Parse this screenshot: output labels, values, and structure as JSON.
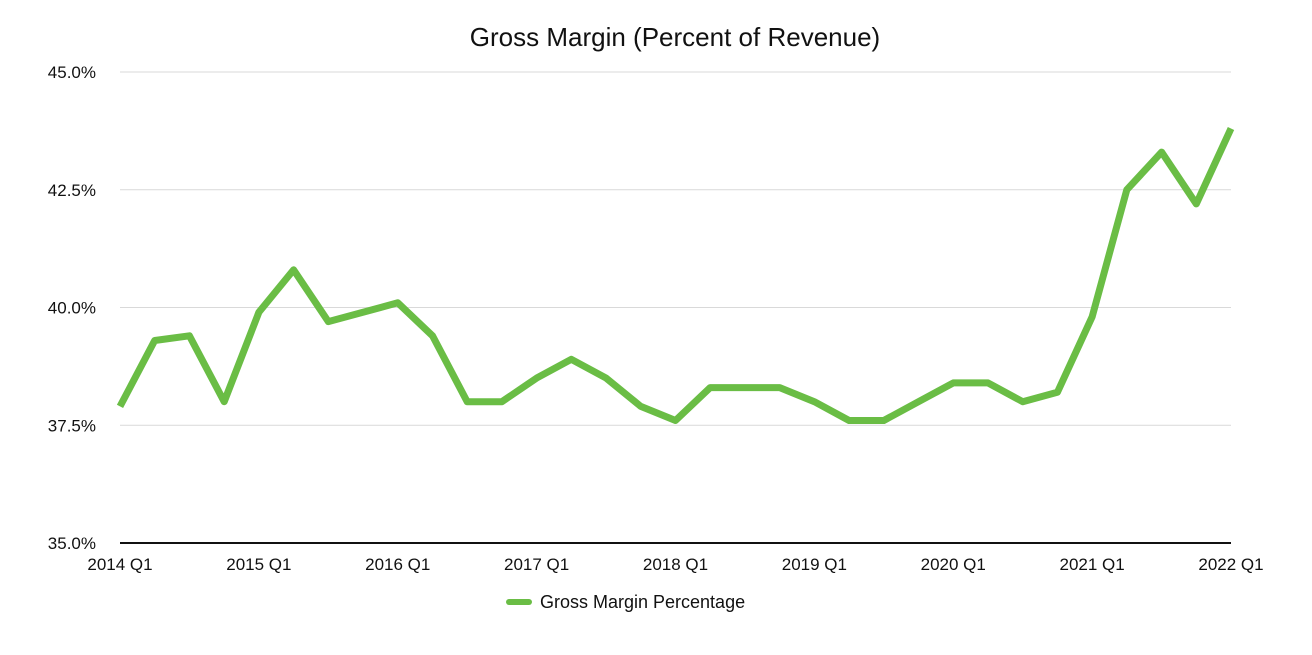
{
  "chart_data": {
    "type": "line",
    "title": "Gross Margin (Percent of Revenue)",
    "xlabel": "",
    "ylabel": "",
    "ylim": [
      35.0,
      45.0
    ],
    "yticks": [
      35.0,
      37.5,
      40.0,
      42.5,
      45.0
    ],
    "ytick_labels": [
      "35.0%",
      "37.5%",
      "40.0%",
      "42.5%",
      "45.0%"
    ],
    "x": [
      "2014 Q1",
      "2014 Q2",
      "2014 Q3",
      "2014 Q4",
      "2015 Q1",
      "2015 Q2",
      "2015 Q3",
      "2015 Q4",
      "2016 Q1",
      "2016 Q2",
      "2016 Q3",
      "2016 Q4",
      "2017 Q1",
      "2017 Q2",
      "2017 Q3",
      "2017 Q4",
      "2018 Q1",
      "2018 Q2",
      "2018 Q3",
      "2018 Q4",
      "2019 Q1",
      "2019 Q2",
      "2019 Q3",
      "2019 Q4",
      "2020 Q1",
      "2020 Q2",
      "2020 Q3",
      "2020 Q4",
      "2021 Q1",
      "2021 Q2",
      "2021 Q3",
      "2021 Q4",
      "2022 Q1"
    ],
    "xtick_labels": [
      "2014 Q1",
      "2015 Q1",
      "2016 Q1",
      "2017 Q1",
      "2018 Q1",
      "2019 Q1",
      "2020 Q1",
      "2021 Q1",
      "2022 Q1"
    ],
    "grid": true,
    "legend_position": "bottom-center",
    "series": [
      {
        "name": "Gross Margin Percentage",
        "color": "#6abd45",
        "values": [
          37.9,
          39.3,
          39.4,
          38.0,
          39.9,
          40.8,
          39.7,
          39.9,
          40.1,
          39.4,
          38.0,
          38.0,
          38.5,
          38.9,
          38.5,
          37.9,
          37.6,
          38.3,
          38.3,
          38.3,
          38.0,
          37.6,
          37.6,
          38.0,
          38.4,
          38.4,
          38.0,
          38.2,
          39.8,
          42.5,
          43.3,
          42.2,
          43.8
        ]
      }
    ]
  }
}
